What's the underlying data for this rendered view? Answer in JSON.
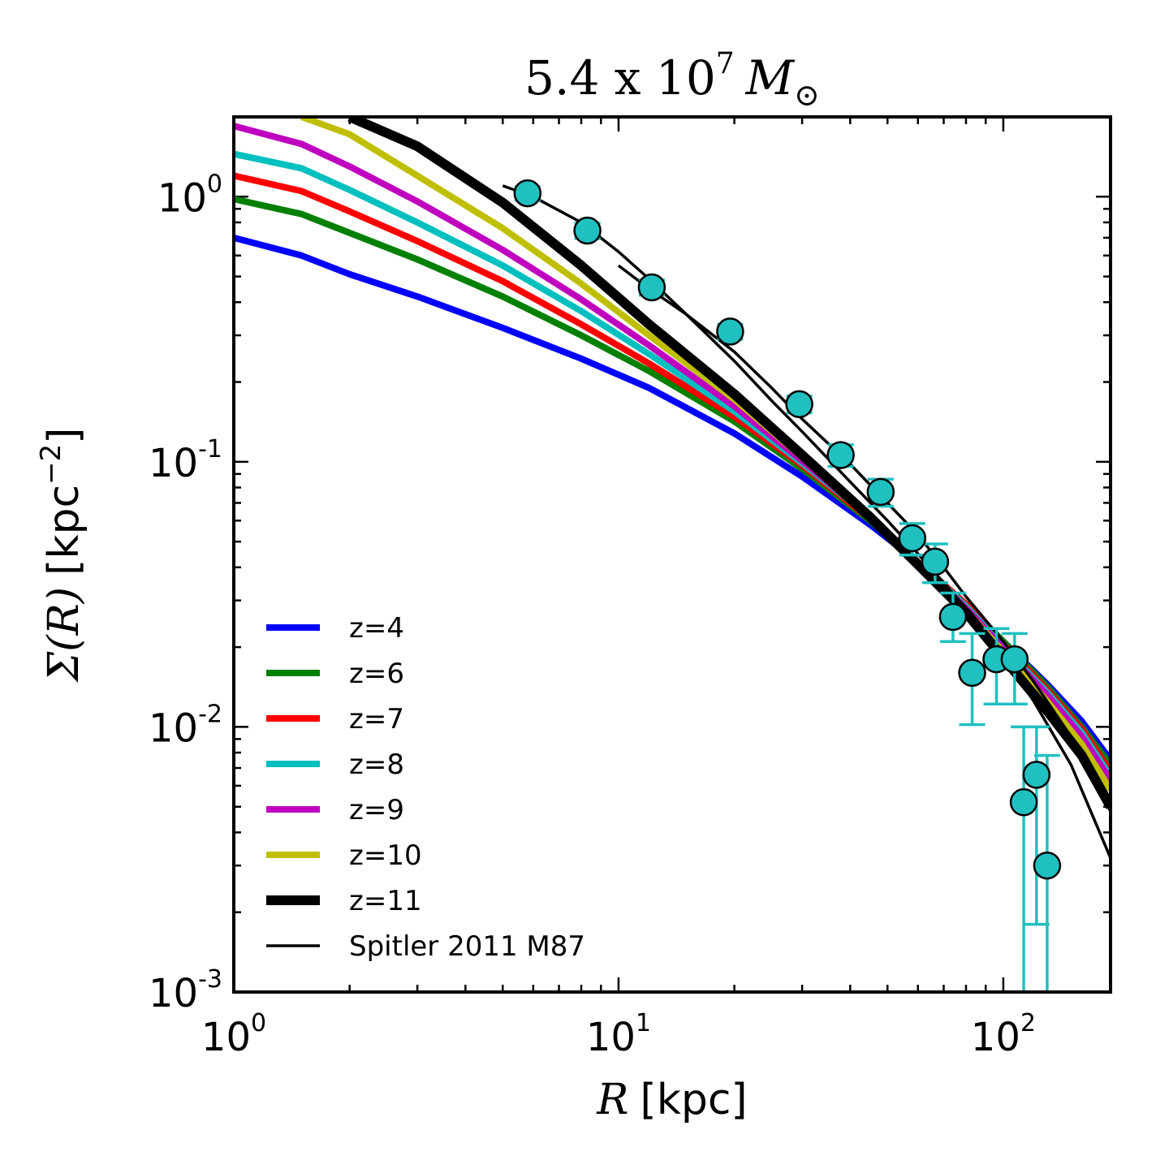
{
  "chart_data": {
    "type": "line",
    "title": {
      "mantissa": "5.4 x 10",
      "exponent": "7",
      "unit_symbol": "M",
      "unit_subscript": "⊙"
    },
    "xlabel": {
      "var": "R",
      "unit": "[kpc]"
    },
    "ylabel": {
      "sym": "Σ(R)",
      "unit_prefix": "[kpc",
      "unit_exp": "−2",
      "unit_suffix": "]"
    },
    "xscale": "log",
    "yscale": "log",
    "xlim": [
      1,
      190
    ],
    "ylim": [
      0.001,
      2.0
    ],
    "xticks": [
      {
        "base": "10",
        "exp": "0",
        "value": 1
      },
      {
        "base": "10",
        "exp": "1",
        "value": 10
      },
      {
        "base": "10",
        "exp": "2",
        "value": 100
      }
    ],
    "yticks": [
      {
        "base": "10",
        "exp": "-3",
        "value": 0.001
      },
      {
        "base": "10",
        "exp": "-2",
        "value": 0.01
      },
      {
        "base": "10",
        "exp": "-1",
        "value": 0.1
      },
      {
        "base": "10",
        "exp": "0",
        "value": 1
      }
    ],
    "legend_position": "lower-left",
    "series": [
      {
        "name": "z=4",
        "color": "#0000ff",
        "style": "thick",
        "x": [
          1,
          1.5,
          2,
          3,
          5,
          8,
          12,
          20,
          30,
          45,
          60,
          80,
          100,
          130,
          160,
          190
        ],
        "y": [
          0.7,
          0.6,
          0.51,
          0.42,
          0.32,
          0.245,
          0.19,
          0.128,
          0.088,
          0.058,
          0.042,
          0.029,
          0.021,
          0.0145,
          0.0105,
          0.0075
        ]
      },
      {
        "name": "z=6",
        "color": "#008000",
        "style": "thick",
        "x": [
          1,
          1.5,
          2,
          3,
          5,
          8,
          12,
          20,
          30,
          45,
          60,
          80,
          100,
          130,
          160,
          190
        ],
        "y": [
          0.98,
          0.86,
          0.73,
          0.58,
          0.42,
          0.3,
          0.22,
          0.142,
          0.094,
          0.06,
          0.042,
          0.029,
          0.021,
          0.0142,
          0.01,
          0.0072
        ]
      },
      {
        "name": "z=7",
        "color": "#ff0000",
        "style": "thick",
        "x": [
          1,
          1.5,
          2,
          3,
          5,
          8,
          12,
          20,
          30,
          45,
          60,
          80,
          100,
          130,
          160,
          190
        ],
        "y": [
          1.2,
          1.05,
          0.88,
          0.68,
          0.48,
          0.33,
          0.235,
          0.148,
          0.097,
          0.061,
          0.042,
          0.029,
          0.0205,
          0.0138,
          0.0098,
          0.0068
        ]
      },
      {
        "name": "z=8",
        "color": "#00bfbf",
        "style": "thick",
        "x": [
          1,
          1.5,
          2,
          3,
          5,
          8,
          12,
          20,
          30,
          45,
          60,
          80,
          100,
          130,
          160,
          190
        ],
        "y": [
          1.45,
          1.28,
          1.06,
          0.8,
          0.55,
          0.37,
          0.255,
          0.155,
          0.099,
          0.062,
          0.042,
          0.0285,
          0.02,
          0.0135,
          0.0095,
          0.0065
        ]
      },
      {
        "name": "z=9",
        "color": "#bf00bf",
        "style": "thick",
        "x": [
          1,
          1.5,
          2,
          3,
          5,
          8,
          12,
          20,
          30,
          45,
          60,
          80,
          100,
          130,
          160,
          190
        ],
        "y": [
          1.85,
          1.58,
          1.3,
          0.96,
          0.63,
          0.41,
          0.275,
          0.162,
          0.101,
          0.062,
          0.042,
          0.028,
          0.0198,
          0.0132,
          0.0092,
          0.0063
        ]
      },
      {
        "name": "z=10",
        "color": "#bfbf00",
        "style": "thick",
        "x": [
          1.5,
          2,
          3,
          5,
          8,
          12,
          20,
          30,
          45,
          60,
          80,
          100,
          130,
          160,
          190
        ],
        "y": [
          2.0,
          1.72,
          1.2,
          0.76,
          0.47,
          0.3,
          0.172,
          0.104,
          0.062,
          0.042,
          0.0275,
          0.0192,
          0.0125,
          0.0086,
          0.0058
        ]
      },
      {
        "name": "z=11",
        "color": "#000000",
        "style": "thickest",
        "x": [
          2,
          3,
          5,
          8,
          12,
          20,
          30,
          45,
          60,
          80,
          100,
          130,
          160,
          190
        ],
        "y": [
          2.0,
          1.55,
          0.95,
          0.55,
          0.33,
          0.18,
          0.106,
          0.062,
          0.041,
          0.027,
          0.0182,
          0.0115,
          0.0078,
          0.005
        ]
      },
      {
        "name": "Spitler 2011 M87",
        "color": "#000000",
        "style": "thin",
        "x": [
          5,
          6,
          8,
          10,
          12,
          15,
          20,
          25,
          30,
          40,
          50,
          60,
          70,
          80,
          100,
          120,
          150,
          190
        ],
        "y": [
          1.1,
          1.0,
          0.8,
          0.62,
          0.49,
          0.36,
          0.24,
          0.17,
          0.13,
          0.084,
          0.06,
          0.045,
          0.035,
          0.028,
          0.0185,
          0.0125,
          0.0072,
          0.0032
        ]
      },
      {
        "name": "Spitler 2011 M87",
        "color": "#000000",
        "style": "thin",
        "x": [
          10,
          12,
          15,
          20,
          25,
          30,
          40,
          50,
          60,
          70,
          80,
          100,
          120,
          150,
          190
        ],
        "y": [
          0.55,
          0.45,
          0.36,
          0.26,
          0.19,
          0.145,
          0.098,
          0.07,
          0.053,
          0.04,
          0.031,
          0.021,
          0.0148,
          0.0092,
          0.0048
        ]
      }
    ],
    "points": {
      "name": "data",
      "color": "#20c0c0",
      "x": [
        5.8,
        8.3,
        12.2,
        19.5,
        29.5,
        37.8,
        48.0,
        58.0,
        66.5,
        74.0,
        83.0,
        96.0,
        107.0,
        113.0,
        122.0,
        130.0
      ],
      "y": [
        1.03,
        0.745,
        0.455,
        0.31,
        0.165,
        0.106,
        0.077,
        0.0515,
        0.042,
        0.026,
        0.016,
        0.018,
        0.018,
        0.0052,
        0.0066,
        0.003
      ],
      "yerr_low": [
        0.06,
        0.05,
        0.03,
        0.02,
        0.012,
        0.01,
        0.009,
        0.007,
        0.007,
        0.005,
        0.0058,
        0.0058,
        0.0058,
        0.0052,
        0.0048,
        0.003
      ],
      "yerr_high": [
        0.06,
        0.05,
        0.03,
        0.02,
        0.012,
        0.01,
        0.009,
        0.007,
        0.007,
        0.006,
        0.0065,
        0.0055,
        0.0045,
        0.0048,
        0.0034,
        0.0048
      ]
    }
  }
}
